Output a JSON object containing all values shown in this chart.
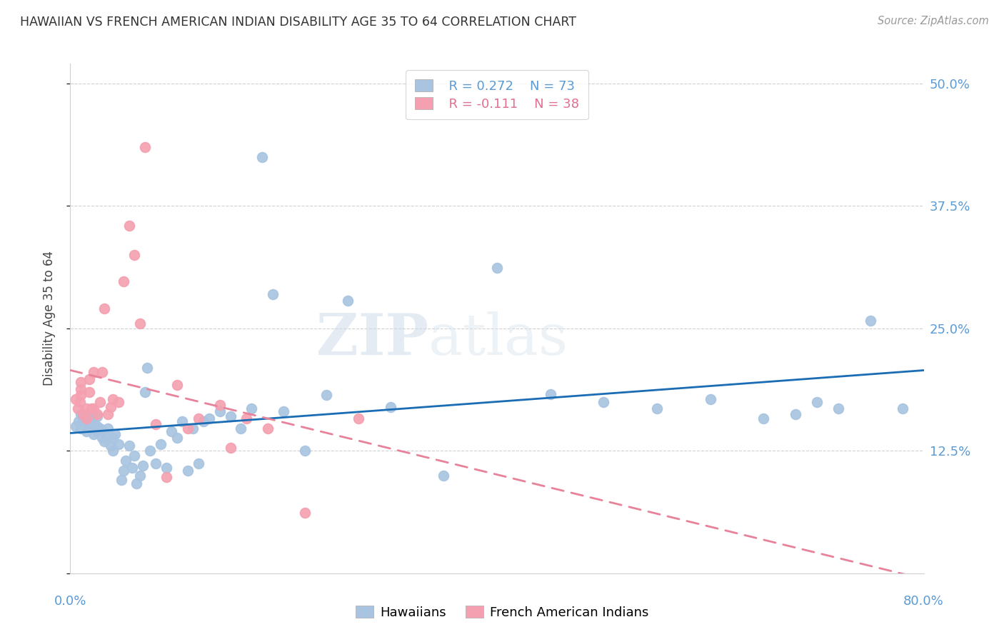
{
  "title": "HAWAIIAN VS FRENCH AMERICAN INDIAN DISABILITY AGE 35 TO 64 CORRELATION CHART",
  "source": "Source: ZipAtlas.com",
  "ylabel": "Disability Age 35 to 64",
  "yticks": [
    0.0,
    0.125,
    0.25,
    0.375,
    0.5
  ],
  "ytick_labels": [
    "",
    "12.5%",
    "25.0%",
    "37.5%",
    "50.0%"
  ],
  "xmin": 0.0,
  "xmax": 0.8,
  "ymin": 0.0,
  "ymax": 0.52,
  "legend_r1": "R = 0.272",
  "legend_n1": "N = 73",
  "legend_r2": "R = -0.111",
  "legend_n2": "N = 38",
  "hawaiian_color": "#a8c4e0",
  "french_color": "#f4a0b0",
  "hawaiian_line_color": "#1a6db5",
  "french_line_color": "#e8829a",
  "watermark_zip": "ZIP",
  "watermark_atlas": "atlas",
  "hawaiian_x": [
    0.005,
    0.008,
    0.01,
    0.01,
    0.012,
    0.015,
    0.015,
    0.018,
    0.018,
    0.02,
    0.02,
    0.022,
    0.022,
    0.025,
    0.025,
    0.025,
    0.028,
    0.03,
    0.03,
    0.032,
    0.035,
    0.035,
    0.038,
    0.04,
    0.04,
    0.042,
    0.045,
    0.048,
    0.05,
    0.052,
    0.055,
    0.058,
    0.06,
    0.062,
    0.065,
    0.068,
    0.07,
    0.072,
    0.075,
    0.08,
    0.085,
    0.09,
    0.095,
    0.1,
    0.105,
    0.11,
    0.115,
    0.12,
    0.125,
    0.13,
    0.14,
    0.15,
    0.16,
    0.17,
    0.18,
    0.19,
    0.2,
    0.22,
    0.24,
    0.26,
    0.3,
    0.35,
    0.4,
    0.45,
    0.5,
    0.55,
    0.6,
    0.65,
    0.68,
    0.7,
    0.72,
    0.75,
    0.78
  ],
  "hawaiian_y": [
    0.15,
    0.155,
    0.148,
    0.162,
    0.155,
    0.145,
    0.16,
    0.15,
    0.158,
    0.148,
    0.155,
    0.142,
    0.152,
    0.145,
    0.15,
    0.16,
    0.148,
    0.138,
    0.145,
    0.135,
    0.14,
    0.148,
    0.13,
    0.125,
    0.138,
    0.142,
    0.132,
    0.095,
    0.105,
    0.115,
    0.13,
    0.108,
    0.12,
    0.092,
    0.1,
    0.11,
    0.185,
    0.21,
    0.125,
    0.112,
    0.132,
    0.108,
    0.145,
    0.138,
    0.155,
    0.105,
    0.148,
    0.112,
    0.155,
    0.158,
    0.165,
    0.16,
    0.148,
    0.168,
    0.425,
    0.285,
    0.165,
    0.125,
    0.182,
    0.278,
    0.17,
    0.1,
    0.312,
    0.183,
    0.175,
    0.168,
    0.178,
    0.158,
    0.162,
    0.175,
    0.168,
    0.258,
    0.168
  ],
  "french_x": [
    0.005,
    0.007,
    0.009,
    0.01,
    0.01,
    0.01,
    0.012,
    0.015,
    0.015,
    0.018,
    0.018,
    0.02,
    0.022,
    0.022,
    0.025,
    0.028,
    0.03,
    0.032,
    0.035,
    0.038,
    0.04,
    0.045,
    0.05,
    0.055,
    0.06,
    0.065,
    0.07,
    0.08,
    0.09,
    0.1,
    0.11,
    0.12,
    0.14,
    0.15,
    0.165,
    0.185,
    0.22,
    0.27
  ],
  "french_y": [
    0.178,
    0.168,
    0.175,
    0.182,
    0.188,
    0.195,
    0.162,
    0.158,
    0.168,
    0.185,
    0.198,
    0.168,
    0.168,
    0.205,
    0.162,
    0.175,
    0.205,
    0.27,
    0.162,
    0.17,
    0.178,
    0.175,
    0.298,
    0.355,
    0.325,
    0.255,
    0.435,
    0.152,
    0.098,
    0.192,
    0.148,
    0.158,
    0.172,
    0.128,
    0.158,
    0.148,
    0.062,
    0.158
  ]
}
